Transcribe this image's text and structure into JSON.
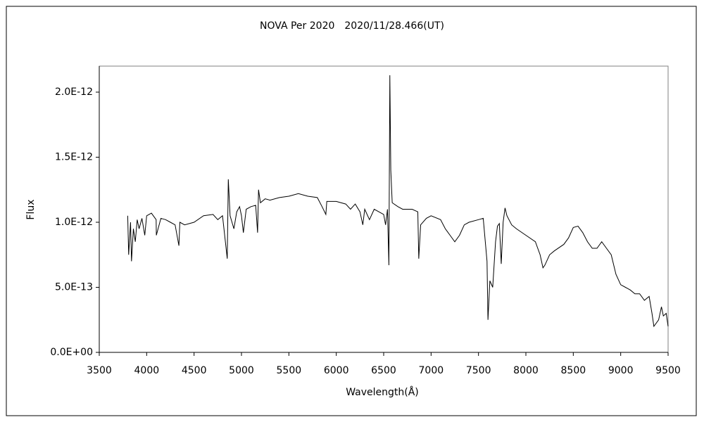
{
  "chart_data": {
    "type": "line",
    "title": "NOVA Per 2020　2020/11/28.466(UT)",
    "xlabel": "Wavelength(Å)",
    "ylabel": "Flux",
    "xlim": [
      3500,
      9500
    ],
    "xticks": [
      3500,
      4000,
      4500,
      5000,
      5500,
      6000,
      6500,
      7000,
      7500,
      8000,
      8500,
      9000,
      9500
    ],
    "ylim": [
      0,
      2.2e-12
    ],
    "yticks": [
      {
        "value": 0,
        "label": "0.0E+00"
      },
      {
        "value": 5e-13,
        "label": "5.0E-13"
      },
      {
        "value": 1e-12,
        "label": "1.0E-12"
      },
      {
        "value": 1.5e-12,
        "label": "1.5E-12"
      },
      {
        "value": 2e-12,
        "label": "2.0E-12"
      }
    ],
    "grid": false,
    "series": [
      {
        "color": "#000000",
        "x": [
          3800,
          3810,
          3830,
          3840,
          3860,
          3880,
          3900,
          3920,
          3950,
          3980,
          4000,
          4050,
          4100,
          4102,
          4150,
          4200,
          4250,
          4300,
          4340,
          4350,
          4400,
          4500,
          4600,
          4700,
          4750,
          4800,
          4850,
          4861,
          4880,
          4920,
          4950,
          4980,
          5000,
          5020,
          5050,
          5100,
          5150,
          5170,
          5180,
          5200,
          5250,
          5300,
          5400,
          5500,
          5600,
          5700,
          5800,
          5850,
          5890,
          5900,
          6000,
          6100,
          6150,
          6200,
          6250,
          6280,
          6300,
          6350,
          6400,
          6450,
          6500,
          6520,
          6540,
          6555,
          6565,
          6575,
          6590,
          6650,
          6700,
          6800,
          6860,
          6870,
          6890,
          6950,
          7000,
          7100,
          7150,
          7200,
          7250,
          7300,
          7350,
          7400,
          7500,
          7550,
          7590,
          7600,
          7620,
          7650,
          7680,
          7700,
          7720,
          7740,
          7760,
          7780,
          7800,
          7850,
          7900,
          8000,
          8100,
          8150,
          8180,
          8200,
          8250,
          8300,
          8400,
          8450,
          8500,
          8550,
          8600,
          8650,
          8700,
          8750,
          8800,
          8850,
          8900,
          8950,
          9000,
          9050,
          9100,
          9150,
          9200,
          9250,
          9300,
          9330,
          9350,
          9400,
          9430,
          9450,
          9480,
          9500
        ],
        "values": [
          1.05e-12,
          7.5e-13,
          1e-12,
          7e-13,
          9.5e-13,
          8.5e-13,
          1.02e-12,
          9.5e-13,
          1.03e-12,
          9e-13,
          1.05e-12,
          1.07e-12,
          1.02e-12,
          9e-13,
          1.03e-12,
          1.02e-12,
          1e-12,
          9.8e-13,
          8.2e-13,
          1e-12,
          9.8e-13,
          1e-12,
          1.05e-12,
          1.06e-12,
          1.02e-12,
          1.05e-12,
          7.2e-13,
          1.33e-12,
          1.05e-12,
          9.5e-13,
          1.08e-12,
          1.12e-12,
          1.05e-12,
          9.2e-13,
          1.1e-12,
          1.12e-12,
          1.13e-12,
          9.2e-13,
          1.25e-12,
          1.15e-12,
          1.18e-12,
          1.17e-12,
          1.19e-12,
          1.2e-12,
          1.22e-12,
          1.2e-12,
          1.19e-12,
          1.12e-12,
          1.06e-12,
          1.16e-12,
          1.16e-12,
          1.14e-12,
          1.1e-12,
          1.14e-12,
          1.08e-12,
          9.8e-13,
          1.1e-12,
          1.02e-12,
          1.1e-12,
          1.08e-12,
          1.06e-12,
          9.8e-13,
          1.1e-12,
          6.7e-13,
          2.13e-12,
          1.4e-12,
          1.15e-12,
          1.12e-12,
          1.1e-12,
          1.1e-12,
          1.08e-12,
          7.2e-13,
          9.8e-13,
          1.03e-12,
          1.05e-12,
          1.02e-12,
          9.5e-13,
          9e-13,
          8.5e-13,
          9e-13,
          9.8e-13,
          1e-12,
          1.02e-12,
          1.03e-12,
          7e-13,
          2.5e-13,
          5.5e-13,
          5e-13,
          8.5e-13,
          9.7e-13,
          9.9e-13,
          6.8e-13,
          1e-12,
          1.11e-12,
          1.05e-12,
          9.8e-13,
          9.5e-13,
          9e-13,
          8.5e-13,
          7.5e-13,
          6.5e-13,
          6.7e-13,
          7.5e-13,
          7.8e-13,
          8.3e-13,
          8.8e-13,
          9.6e-13,
          9.7e-13,
          9.2e-13,
          8.5e-13,
          8e-13,
          8e-13,
          8.5e-13,
          8e-13,
          7.5e-13,
          6e-13,
          5.2e-13,
          5e-13,
          4.8e-13,
          4.5e-13,
          4.5e-13,
          4e-13,
          4.3e-13,
          3e-13,
          2e-13,
          2.5e-13,
          3.5e-13,
          2.8e-13,
          3e-13,
          2e-13
        ]
      }
    ]
  }
}
